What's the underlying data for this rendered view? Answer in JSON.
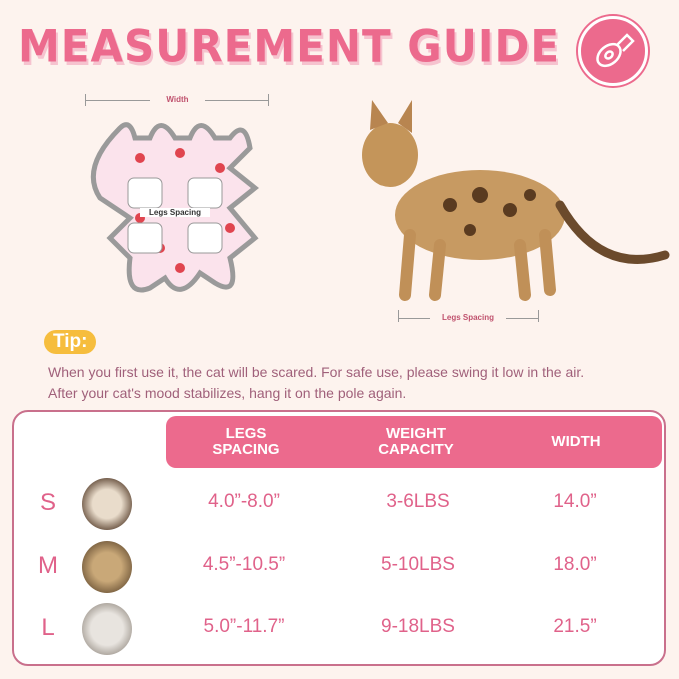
{
  "title": "MEASUREMENT GUIDE",
  "icon": "measuring-tape-icon",
  "garment": {
    "width_label": "Width",
    "legs_label": "Legs Spacing"
  },
  "cat_photo": {
    "legs_label": "Legs Spacing"
  },
  "tip": {
    "label": "Tip:",
    "text": "When you first use it, the cat will be scared. For safe use, please swing it low in the air. After your cat's mood stabilizes, hang it on the pole again."
  },
  "table": {
    "headers": [
      "LEGS\nSPACING",
      "WEIGHT\nCAPACITY",
      "WIDTH"
    ],
    "rows": [
      {
        "size": "S",
        "legs": "4.0”-8.0”",
        "weight": "3-6LBS",
        "width": "14.0”"
      },
      {
        "size": "M",
        "legs": "4.5”-10.5”",
        "weight": "5-10LBS",
        "width": "18.0”"
      },
      {
        "size": "L",
        "legs": "5.0”-11.7”",
        "weight": "9-18LBS",
        "width": "21.5”"
      }
    ]
  },
  "colors": {
    "accent": "#ec6a8d",
    "tip": "#f6bd3d",
    "background": "#fdf3ee"
  }
}
